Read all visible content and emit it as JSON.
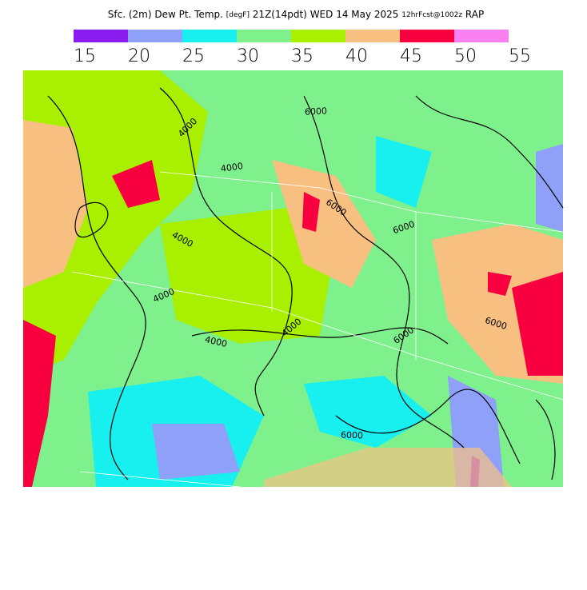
{
  "header": {
    "field": "Sfc. (2m) Dew Pt. Temp.",
    "units": "[degF]",
    "valid": "21Z(14pdt)",
    "date": "WED 14 May 2025",
    "forecast": "12hrFcst@1002z",
    "model": "RAP"
  },
  "legend": {
    "ticks": [
      15,
      20,
      25,
      30,
      35,
      40,
      45,
      50,
      55
    ],
    "colors": [
      "#8b1cf0",
      "#8ea0f8",
      "#18f0f0",
      "#7ef08c",
      "#a8f000",
      "#f8c080",
      "#f80040",
      "#f880f0"
    ]
  },
  "map": {
    "contour_labels": [
      "4000",
      "4000",
      "4000",
      "4000",
      "4000",
      "4000",
      "6000",
      "6000",
      "6000",
      "6000",
      "6000",
      "6000"
    ]
  }
}
